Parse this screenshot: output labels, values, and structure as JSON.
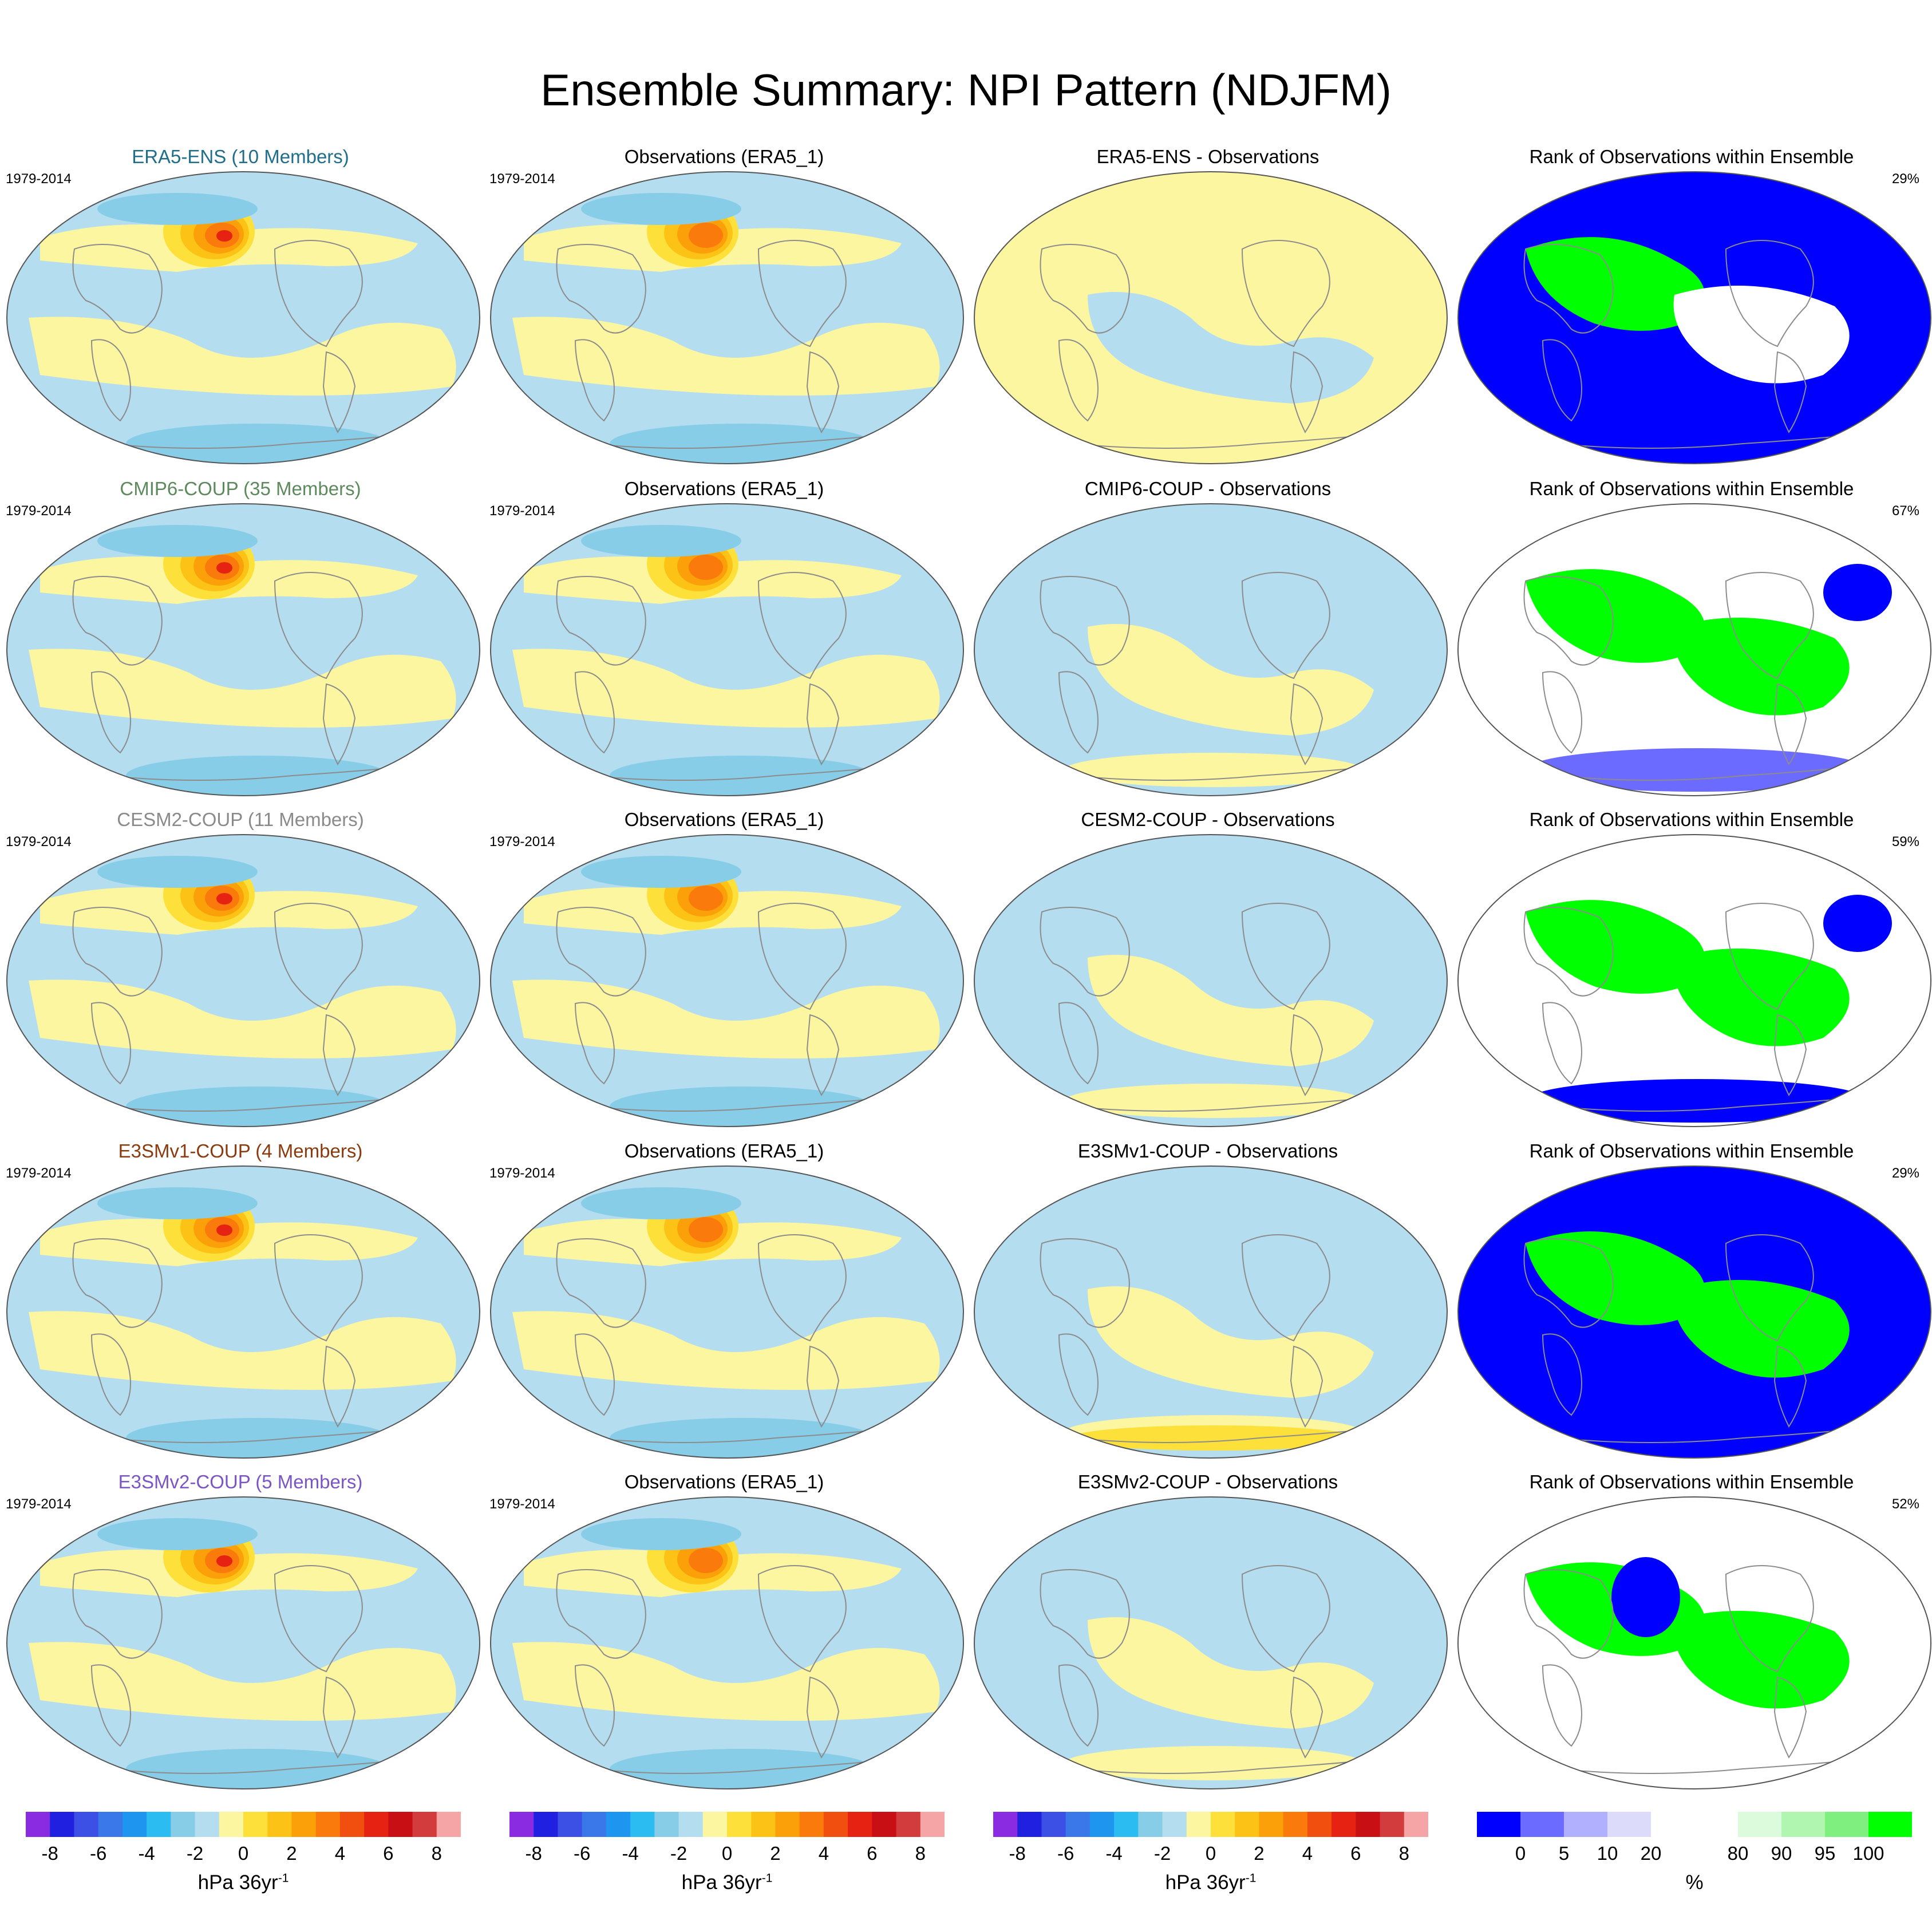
{
  "title": "Ensemble Summary: NPI Pattern (NDJFM)",
  "rows": [
    {
      "model": "ERA5-ENS (10 Members)",
      "model_color": "#1f6e8a",
      "years": "1979-2014",
      "obs_title": "Observations (ERA5_1)",
      "diff_title": "ERA5-ENS - Observations",
      "rank_title": "Rank of Observations within Ensemble",
      "rank_pct": "29%"
    },
    {
      "model": "CMIP6-COUP (35 Members)",
      "model_color": "#5d8a5d",
      "years": "1979-2014",
      "obs_title": "Observations (ERA5_1)",
      "diff_title": "CMIP6-COUP - Observations",
      "rank_title": "Rank of Observations within Ensemble",
      "rank_pct": "67%"
    },
    {
      "model": "CESM2-COUP (11 Members)",
      "model_color": "#8a8a8a",
      "years": "1979-2014",
      "obs_title": "Observations (ERA5_1)",
      "diff_title": "CESM2-COUP - Observations",
      "rank_title": "Rank of Observations within Ensemble",
      "rank_pct": "59%"
    },
    {
      "model": "E3SMv1-COUP (4 Members)",
      "model_color": "#8b3a0e",
      "years": "1979-2014",
      "obs_title": "Observations (ERA5_1)",
      "diff_title": "E3SMv1-COUP - Observations",
      "rank_title": "Rank of Observations within Ensemble",
      "rank_pct": "29%"
    },
    {
      "model": "E3SMv2-COUP (5 Members)",
      "model_color": "#7b55c6",
      "years": "1979-2014",
      "obs_title": "Observations (ERA5_1)",
      "diff_title": "E3SMv2-COUP - Observations",
      "rank_title": "Rank of Observations within Ensemble",
      "rank_pct": "52%"
    }
  ],
  "colorbars": {
    "hpa": {
      "label": "hPa 36yr",
      "label_sup": "-1",
      "ticks": [
        "-8",
        "-6",
        "-4",
        "-2",
        "0",
        "2",
        "4",
        "6",
        "8"
      ],
      "colors": [
        "#8a2be2",
        "#2020e0",
        "#3c50e6",
        "#3a78ea",
        "#1e96f0",
        "#2bbcf2",
        "#87cde8",
        "#b5ddf0",
        "#fcf6a0",
        "#fde13a",
        "#fcc316",
        "#fca00a",
        "#fa7a0c",
        "#f04f10",
        "#e62212",
        "#c80f14",
        "#d23c3c",
        "#f5a5a5"
      ]
    },
    "rank": {
      "label": "%",
      "ticks": [
        "0",
        "5",
        "10",
        "20",
        "80",
        "90",
        "95",
        "100"
      ],
      "colors": [
        "#0000ff",
        "#6b6bff",
        "#b0b0ff",
        "#dcdcfa",
        "#ffffff",
        "#ffffff",
        "#dcfadc",
        "#b0f5b0",
        "#7ff07f",
        "#00ff00"
      ]
    }
  },
  "map_colors": {
    "neg_light": "#b5ddf0",
    "neg_med": "#87cde8",
    "pos_light": "#fcf6a0",
    "pos_1": "#fde13a",
    "pos_2": "#fcc316",
    "pos_3": "#fca00a",
    "pos_4": "#fa7a0c",
    "pos_5": "#f04f10",
    "pos_6": "#e62212",
    "rank_blue": "#0000ff",
    "rank_green": "#00ff00",
    "rank_lightblue": "#dcdcfa",
    "rank_lightgreen": "#dcfadc",
    "rank_white": "#ffffff"
  }
}
